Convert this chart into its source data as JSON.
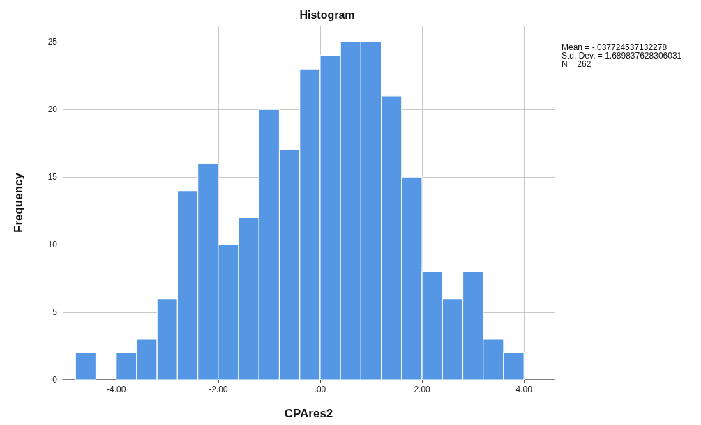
{
  "chart_data": {
    "type": "histogram",
    "title": "Histogram",
    "xlabel": "CPAres2",
    "ylabel": "Frequency",
    "bins": [
      -4.8,
      -4.4,
      -4.0,
      -3.6,
      -3.2,
      -2.8,
      -2.4,
      -2.0,
      -1.6,
      -1.2,
      -0.8,
      -0.4,
      0.0,
      0.4,
      0.8,
      1.2,
      1.6,
      2.0,
      2.4,
      2.8,
      3.2,
      3.6,
      4.0
    ],
    "values": [
      2,
      0,
      2,
      3,
      6,
      14,
      16,
      10,
      12,
      20,
      17,
      23,
      24,
      25,
      25,
      21,
      15,
      8,
      6,
      8,
      3,
      2
    ],
    "color": "#5596e5",
    "xlim": [
      -5.05,
      4.6
    ],
    "xticks": [
      {
        "value": -4,
        "label": "-4.00"
      },
      {
        "value": -2,
        "label": "-2.00"
      },
      {
        "value": 0,
        "label": ".00"
      },
      {
        "value": 2,
        "label": "2.00"
      },
      {
        "value": 4,
        "label": "4.00"
      }
    ],
    "ylim": [
      0,
      26.2
    ],
    "yticks": [
      0,
      5,
      10,
      15,
      20,
      25
    ],
    "grid": true,
    "annotations": [
      "Mean = -.037724537132278",
      "Std. Dev. = 1.689837628306031",
      "N = 262"
    ]
  }
}
